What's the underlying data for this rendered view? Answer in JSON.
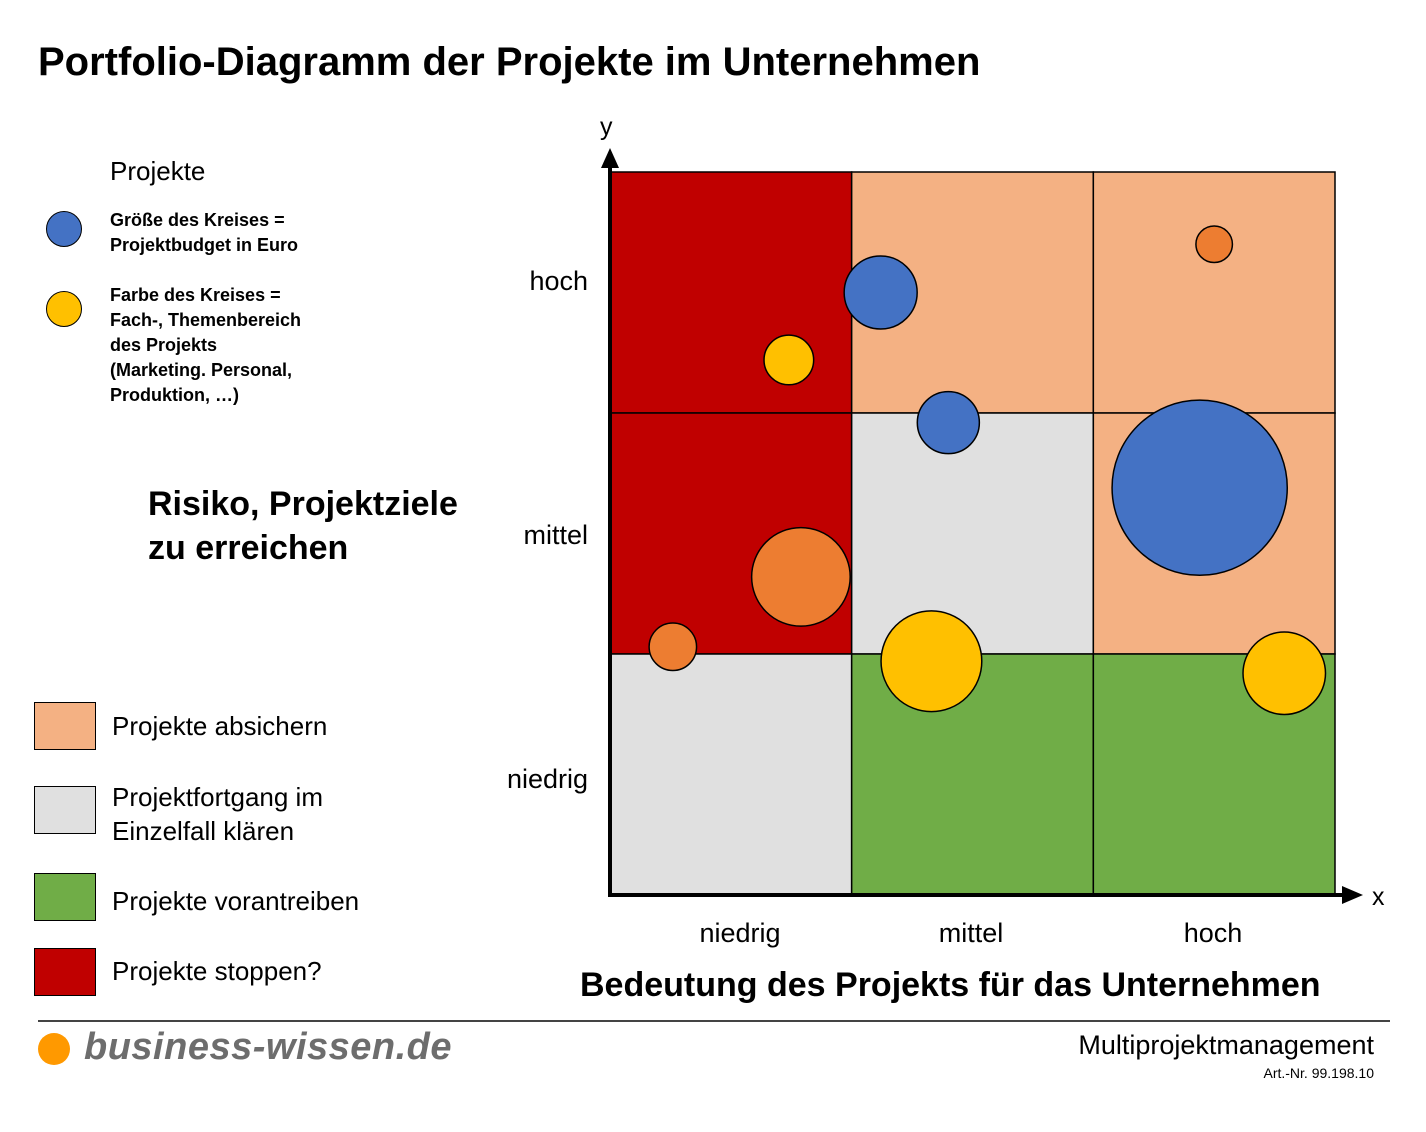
{
  "title": "Portfolio-Diagramm der Projekte im Unternehmen",
  "legend": {
    "heading": "Projekte",
    "items": [
      {
        "color": "#4472C4",
        "text": "Größe des Kreises =\nProjektbudget in Euro"
      },
      {
        "color": "#FFC000",
        "text": "Farbe des Kreises =\nFach-, Themenbereich\ndes Projekts\n(Marketing. Personal,\nProduktion, …)"
      }
    ]
  },
  "axes": {
    "y_var": "y",
    "x_var": "x",
    "y_title": "Risiko, Projektziele\nzu erreichen",
    "x_title": "Bedeutung des Projekts für das Unternehmen",
    "y_ticks": [
      "hoch",
      "mittel",
      "niedrig"
    ],
    "x_ticks": [
      "niedrig",
      "mittel",
      "hoch"
    ]
  },
  "categories": [
    {
      "key": "absichern",
      "label": "Projekte absichern",
      "color": "#F4B183"
    },
    {
      "key": "klaeren",
      "label": "Projektfortgang im\nEinzelfall klären",
      "color": "#E0E0E0"
    },
    {
      "key": "vorantreiben",
      "label": "Projekte vorantreiben",
      "color": "#70AD47"
    },
    {
      "key": "stoppen",
      "label": "Projekte stoppen?",
      "color": "#C00000"
    }
  ],
  "grid": {
    "rows": [
      "hoch",
      "mittel",
      "niedrig"
    ],
    "cols": [
      "niedrig",
      "mittel",
      "hoch"
    ],
    "cells": [
      [
        "stoppen",
        "absichern",
        "absichern"
      ],
      [
        "stoppen",
        "klaeren",
        "absichern"
      ],
      [
        "klaeren",
        "vorantreiben",
        "vorantreiben"
      ]
    ]
  },
  "chart_data": {
    "type": "scatter",
    "title": "",
    "xlabel": "Bedeutung des Projekts für das Unternehmen",
    "ylabel": "Risiko, Projektziele zu erreichen",
    "x_ticks": [
      "niedrig",
      "mittel",
      "hoch"
    ],
    "y_ticks": [
      "niedrig",
      "mittel",
      "hoch"
    ],
    "xlim": [
      0,
      3
    ],
    "ylim": [
      0,
      3
    ],
    "size_meaning": "Projektbudget in Euro",
    "color_meaning": "Fach-, Themenbereich des Projekts",
    "points": [
      {
        "x": 1.12,
        "y": 2.5,
        "size": 1.0,
        "color": "#4472C4"
      },
      {
        "x": 1.4,
        "y": 1.96,
        "size": 0.85,
        "color": "#4472C4"
      },
      {
        "x": 2.44,
        "y": 1.69,
        "size": 2.4,
        "color": "#4472C4"
      },
      {
        "x": 2.5,
        "y": 2.7,
        "size": 0.5,
        "color": "#ED7D31"
      },
      {
        "x": 0.79,
        "y": 1.32,
        "size": 1.35,
        "color": "#ED7D31"
      },
      {
        "x": 0.26,
        "y": 1.03,
        "size": 0.65,
        "color": "#ED7D31"
      },
      {
        "x": 0.74,
        "y": 2.22,
        "size": 0.68,
        "color": "#FFC000"
      },
      {
        "x": 1.33,
        "y": 0.97,
        "size": 1.38,
        "color": "#FFC000"
      },
      {
        "x": 2.79,
        "y": 0.92,
        "size": 1.13,
        "color": "#FFC000"
      }
    ]
  },
  "footer": {
    "brand": "business-wissen.de",
    "brand_dot_color": "#FF9900",
    "title": "Multiprojektmanagement",
    "article": "Art.-Nr. 99.198.10"
  }
}
